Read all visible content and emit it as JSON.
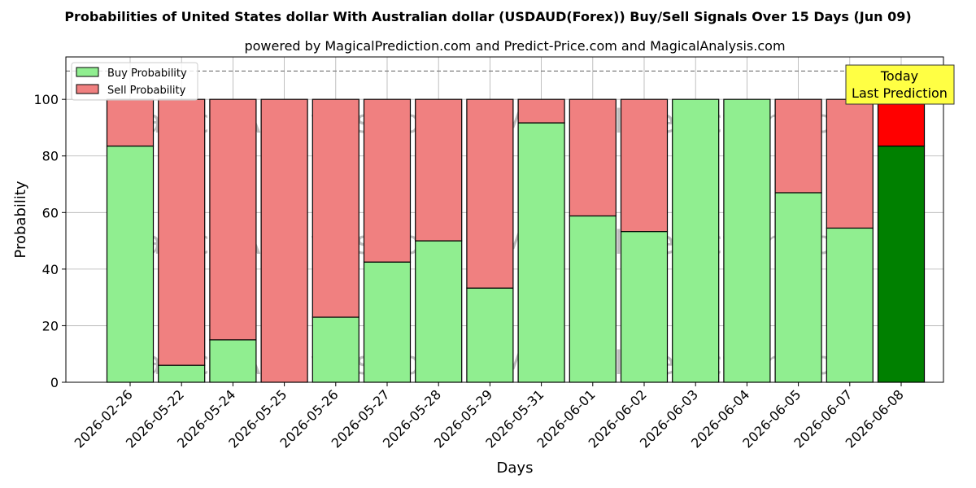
{
  "chart_data": {
    "type": "bar",
    "stacked": true,
    "title": "Probabilities of United States dollar With Australian dollar (USDAUD(Forex)) Buy/Sell Signals Over 15 Days (Jun 09)",
    "subtitle": "powered by MagicalPrediction.com and Predict-Price.com and MagicalAnalysis.com",
    "xlabel": "Days",
    "ylabel": "Probability",
    "ylim": [
      0,
      115
    ],
    "yticks": [
      0,
      20,
      40,
      60,
      80,
      100
    ],
    "reference_line": 110,
    "grid": true,
    "legend_position": "top-left",
    "categories": [
      "2026-02-26",
      "2026-05-22",
      "2026-05-24",
      "2026-05-25",
      "2026-05-26",
      "2026-05-27",
      "2026-05-28",
      "2026-05-29",
      "2026-05-31",
      "2026-06-01",
      "2026-06-02",
      "2026-06-03",
      "2026-06-04",
      "2026-06-05",
      "2026-06-07",
      "2026-06-08"
    ],
    "series": [
      {
        "name": "Buy Probability",
        "color": "#90ee90",
        "highlight_color": "#008000",
        "values": [
          83.5,
          6,
          15,
          0,
          23,
          42.5,
          50,
          33.3,
          91.7,
          58.8,
          53.3,
          100,
          100,
          67,
          54.5,
          83.5
        ]
      },
      {
        "name": "Sell Probability",
        "color": "#f08080",
        "highlight_color": "#ff0000",
        "values": [
          16.5,
          94,
          85,
          100,
          77,
          57.5,
          50,
          66.7,
          8.3,
          41.2,
          46.7,
          0,
          0,
          33,
          45.5,
          16.5
        ]
      }
    ],
    "highlight_index": 15,
    "annotation": [
      "Today",
      "Last Prediction"
    ],
    "annotation_color": "#ffff44",
    "watermarks": [
      "MagicalAnalysis.com",
      "MagicalPrediction.com"
    ]
  }
}
